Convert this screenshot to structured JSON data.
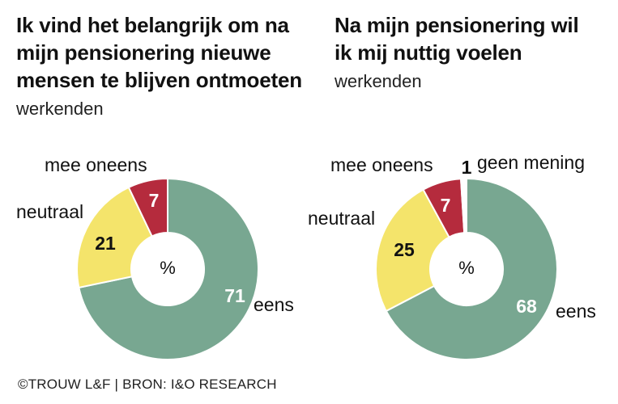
{
  "chart_data": [
    {
      "type": "pie",
      "title": "Ik vind het belangrijk om na\nmijn pensionering nieuwe\nmensen te blijven ontmoeten",
      "subtitle": "werkenden",
      "unit": "%",
      "slices": [
        {
          "label": "eens",
          "value": 71,
          "color": "#78a791",
          "value_color": "#ffffff"
        },
        {
          "label": "neutraal",
          "value": 21,
          "color": "#f4e46b",
          "value_color": "#111111"
        },
        {
          "label": "mee oneens",
          "value": 7,
          "color": "#b52b3d",
          "value_color": "#ffffff"
        }
      ]
    },
    {
      "type": "pie",
      "title": "Na mijn pensionering wil\nik mij nuttig voelen",
      "subtitle": "werkenden",
      "unit": "%",
      "slices": [
        {
          "label": "eens",
          "value": 68,
          "color": "#78a791",
          "value_color": "#ffffff"
        },
        {
          "label": "neutraal",
          "value": 25,
          "color": "#f4e46b",
          "value_color": "#111111"
        },
        {
          "label": "mee oneens",
          "value": 7,
          "color": "#b52b3d",
          "value_color": "#ffffff"
        },
        {
          "label": "geen mening",
          "value": 1,
          "color": "#ffffff",
          "value_color": "#111111"
        }
      ]
    }
  ],
  "footer": "©TROUW L&F | BRON: I&O RESEARCH"
}
